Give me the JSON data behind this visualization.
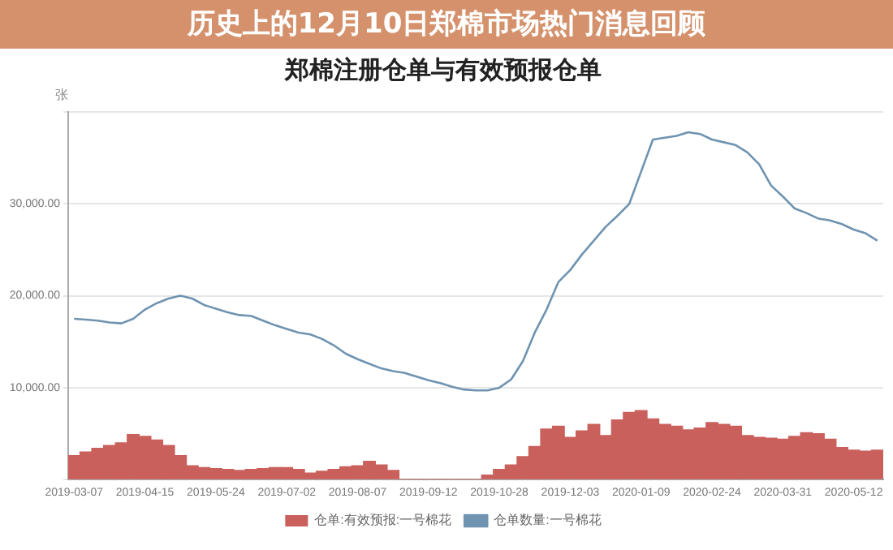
{
  "chart_data": {
    "type": "bar",
    "title": "郑棉注册仓单与有效预报仓单",
    "ylabel": "张",
    "annotations": [
      "历史上的12月10日郑棉市场热门消息回顾"
    ],
    "categories": [
      "2019-03-07",
      null,
      null,
      null,
      null,
      null,
      "2019-04-15",
      null,
      null,
      null,
      null,
      null,
      "2019-05-24",
      null,
      null,
      null,
      null,
      null,
      "2019-07-02",
      null,
      null,
      null,
      null,
      null,
      "2019-08-07",
      null,
      null,
      null,
      null,
      null,
      "2019-09-12",
      null,
      null,
      null,
      null,
      null,
      "2019-10-28",
      null,
      null,
      null,
      null,
      null,
      "2019-12-03",
      null,
      null,
      null,
      null,
      null,
      "2020-01-09",
      null,
      null,
      null,
      null,
      null,
      "2020-02-24",
      null,
      null,
      null,
      null,
      null,
      "2020-03-31",
      null,
      null,
      null,
      null,
      null,
      "2020-05-12",
      null,
      null
    ],
    "series": [
      {
        "name": "仓单:有效预报:一号棉花",
        "color": "#c9605c",
        "values": [
          2600,
          3000,
          3400,
          3700,
          4000,
          4900,
          4700,
          4300,
          3700,
          2600,
          1500,
          1300,
          1200,
          1100,
          1000,
          1100,
          1200,
          1300,
          1300,
          1100,
          700,
          900,
          1100,
          1400,
          1500,
          2000,
          1600,
          1000,
          0,
          0,
          0,
          0,
          0,
          0,
          0,
          500,
          1100,
          1600,
          2500,
          3600,
          5500,
          5800,
          4600,
          5300,
          6000,
          4800,
          6500,
          7300,
          7500,
          6600,
          6000,
          5800,
          5400,
          5600,
          6200,
          6000,
          5800,
          4800,
          4600,
          4500,
          4400,
          4700,
          5100,
          5000,
          4400,
          3500,
          3200,
          3100,
          3200
        ]
      },
      {
        "name": "仓单数量:一号棉花",
        "type": "line",
        "color": "#6f93b0",
        "values": [
          17500,
          17400,
          17300,
          17100,
          17000,
          17500,
          18500,
          19200,
          19700,
          20000,
          19700,
          19000,
          18600,
          18200,
          17900,
          17800,
          17300,
          16800,
          16400,
          16000,
          15800,
          15300,
          14600,
          13700,
          13100,
          12600,
          12100,
          11800,
          11600,
          11200,
          10800,
          10500,
          10100,
          9800,
          9700,
          9700,
          10000,
          10900,
          12900,
          16000,
          18500,
          21500,
          22800,
          24500,
          26000,
          27500,
          28700,
          30000,
          33500,
          37000,
          37200,
          37400,
          37800,
          37600,
          37000,
          36700,
          36400,
          35600,
          34300,
          32000,
          30800,
          29500,
          29000,
          28400,
          28200,
          27800,
          27200,
          26800,
          26000
        ]
      }
    ],
    "ylim": [
      0,
      40000
    ],
    "yticks": [
      {
        "value": 0,
        "label": null
      },
      {
        "value": 10000,
        "label": "10,000.00"
      },
      {
        "value": 20000,
        "label": "20,000.00"
      },
      {
        "value": 30000,
        "label": "30,000.00"
      },
      {
        "value": 40000,
        "label": null
      }
    ],
    "grid": "y",
    "legend": "bottom",
    "marker": "none"
  }
}
